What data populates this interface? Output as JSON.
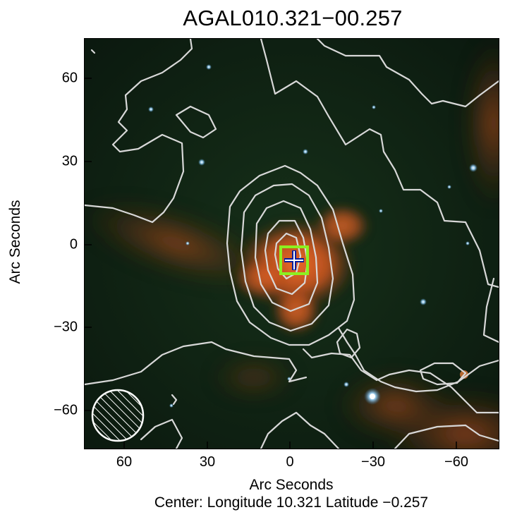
{
  "figure": {
    "title": "AGAL010.321−00.257",
    "ylabel": "Arc Seconds",
    "xlabel": "Arc Seconds",
    "center_text": "Center:  Longitude 10.321 Latitude −0.257",
    "x_ticks": [
      "60",
      "30",
      "0",
      "−30",
      "−60"
    ],
    "y_ticks": [
      "60",
      "30",
      "0",
      "−30",
      "−60"
    ],
    "xlim": [
      74,
      -75
    ],
    "ylim": [
      -74,
      74
    ]
  },
  "colors": {
    "background": "#0f2014",
    "emission": "#d0561e",
    "contour": "#d8d8d8",
    "marker_square": "#8cf020",
    "marker_cross_outer": "#0a1f9e",
    "marker_cross_inner": "#ffffff",
    "beam": "#ffffff"
  },
  "markers": {
    "square_center": [
      -3,
      -6
    ],
    "square_half_size": 6,
    "cross_center": [
      -3,
      -6
    ],
    "beam_center": [
      61,
      -61
    ],
    "beam_radius_arcsec": 9
  }
}
